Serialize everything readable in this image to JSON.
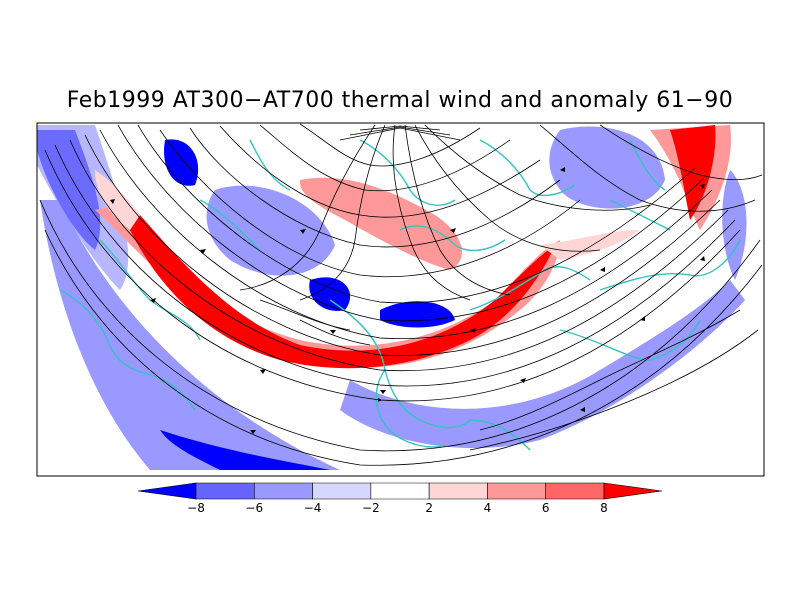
{
  "figure": {
    "title": "Feb1999 AT300−AT700 thermal wind and anomaly 61−90"
  },
  "map": {
    "projection": "north-polar-stereographic",
    "fields": [
      "thermal wind streamlines",
      "thermal wind anomaly (shaded)"
    ],
    "coastline_color": "#33c3c3",
    "streamline_color": "#000000"
  },
  "colorbar": {
    "levels": [
      -8,
      -6,
      -4,
      -2,
      2,
      4,
      6,
      8
    ],
    "labels": [
      "−8",
      "−6",
      "−4",
      "−2",
      "2",
      "4",
      "6",
      "8"
    ],
    "colors": [
      "#0000ff",
      "#6666ff",
      "#9999ff",
      "#d6d6ff",
      "#ffffff",
      "#ffd6d6",
      "#ff9999",
      "#ff6666",
      "#ff0000"
    ]
  }
}
